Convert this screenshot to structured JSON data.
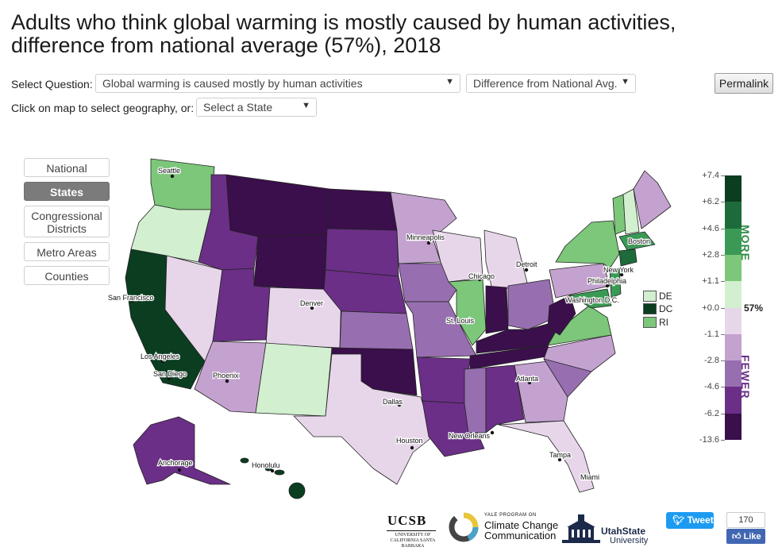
{
  "title": "Adults who think global warming is mostly caused by human activities, difference from national average (57%), 2018",
  "controls": {
    "select_question_label": "Select Question:",
    "question_value": "Global warming is caused mostly by human activities",
    "measure_value": "Difference from National Avg.",
    "geo_label": "Click on map to select geography, or:",
    "state_value": "Select a State",
    "permalink": "Permalink"
  },
  "geography_buttons": [
    {
      "label": "National",
      "active": false
    },
    {
      "label": "States",
      "active": true
    },
    {
      "label": "Congressional Districts",
      "active": false
    },
    {
      "label": "Metro Areas",
      "active": false
    },
    {
      "label": "Counties",
      "active": false
    }
  ],
  "legend": {
    "ticks": [
      "+7.4",
      "+6.2",
      "+4.6",
      "+2.8",
      "+1.1",
      "+0.0",
      "-1.1",
      "-2.8",
      "-4.6",
      "-6.2",
      "-13.6"
    ],
    "bin_colors": [
      "#0b3d21",
      "#1d6b3a",
      "#3a9a55",
      "#7cc77a",
      "#d2efcf",
      "#e7d6ea",
      "#c4a2cf",
      "#976fb0",
      "#6b2f87",
      "#3a0f4b"
    ],
    "more_label": "MORE",
    "fewer_label": "FEWER",
    "national_avg_label": "57%"
  },
  "small_states": [
    {
      "abbr": "DE",
      "color": "#d2efcf"
    },
    {
      "abbr": "DC",
      "color": "#0b3d21"
    },
    {
      "abbr": "RI",
      "color": "#7cc77a"
    }
  ],
  "cities": [
    "Seattle",
    "Minneapolis",
    "Boston",
    "Detroit",
    "New York",
    "Chicago",
    "Philadelphia",
    "San Francisco",
    "Denver",
    "Washington D.C.",
    "St. Louis",
    "Los Angeles",
    "Phoenix",
    "San Diego",
    "Atlanta",
    "Dallas",
    "New Orleans",
    "Houston",
    "Tampa",
    "Anchorage",
    "Honolulu",
    "Miami"
  ],
  "footer": {
    "ucsb": "UCSB",
    "ucsb_sub": "UNIVERSITY OF CALIFORNIA SANTA BARBARA",
    "yale_small": "YALE PROGRAM ON",
    "yale_line1": "Climate Change",
    "yale_line2": "Communication",
    "usu_line1": "UtahState",
    "usu_line2": "University",
    "tweet": "Tweet",
    "fb_count": "170",
    "fb_like": "Like"
  }
}
